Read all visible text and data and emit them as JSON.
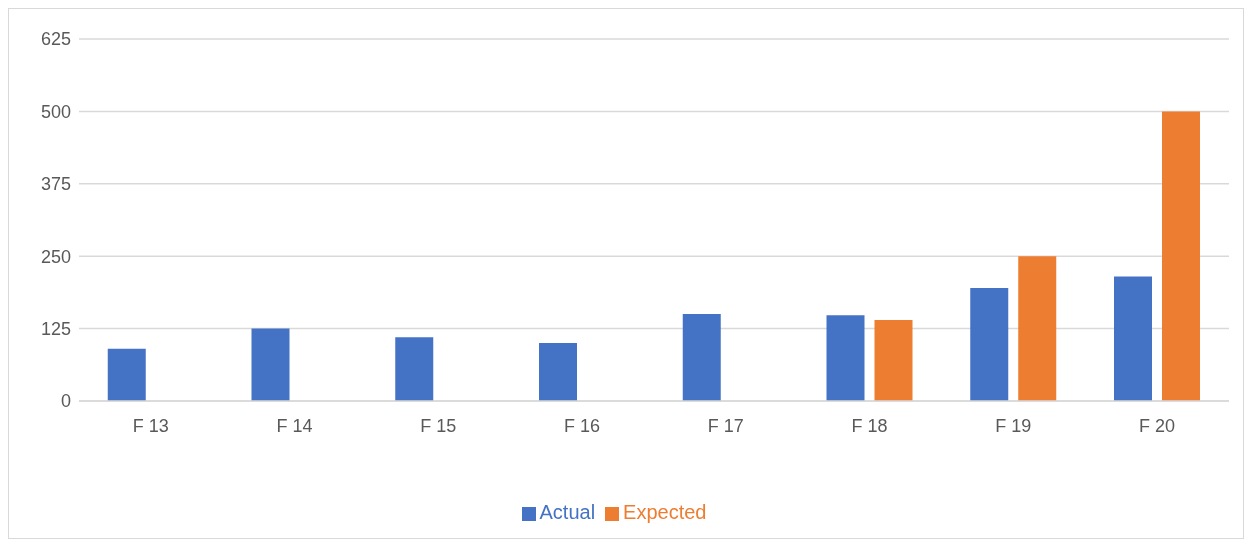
{
  "chart_data": {
    "type": "bar",
    "categories": [
      "F 13",
      "F 14",
      "F 15",
      "F 16",
      "F 17",
      "F 18",
      "F 19",
      "F 20"
    ],
    "series": [
      {
        "name": "Actual",
        "color": "#4472c4",
        "values": [
          90,
          125,
          110,
          100,
          150,
          148,
          195,
          215
        ]
      },
      {
        "name": "Expected",
        "color": "#ed7d31",
        "values": [
          null,
          null,
          null,
          null,
          null,
          140,
          250,
          500
        ]
      }
    ],
    "ylim": [
      0,
      625
    ],
    "yticks": [
      0,
      125,
      250,
      375,
      500,
      625
    ],
    "grid": "y",
    "legend": "bottom"
  }
}
